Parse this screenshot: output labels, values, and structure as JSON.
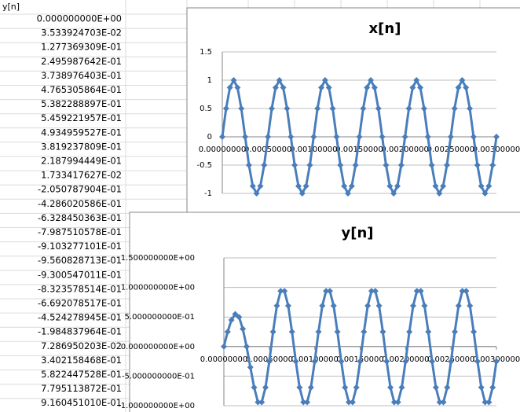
{
  "sheet": {
    "header": "y[n]",
    "cells": [
      "0.000000000E+00",
      "3.533924703E-02",
      "1.277369309E-01",
      "2.495987642E-01",
      "3.738976403E-01",
      "4.765305864E-01",
      "5.382288897E-01",
      "5.459221957E-01",
      "4.934959527E-01",
      "3.819237809E-01",
      "2.187994449E-01",
      "1.733417627E-02",
      "-2.050787904E-01",
      "-4.286020586E-01",
      "-6.328450363E-01",
      "-7.987510578E-01",
      "-9.103277101E-01",
      "-9.560828713E-01",
      "-9.300547011E-01",
      "-8.323578514E-01",
      "-6.692078517E-01",
      "-4.524278945E-01",
      "-1.984837964E-01",
      "7.286950203E-02",
      "3.402158468E-01",
      "5.822447528E-01",
      "7.795113872E-01",
      "9.160451010E-01"
    ]
  },
  "chart_data": [
    {
      "type": "line",
      "title": "x[n]",
      "color": "#4a7ebb",
      "grid": true,
      "categories": [
        "0.00000000",
        null,
        null,
        null,
        null,
        null,
        null,
        null,
        null,
        null,
        null,
        null,
        "0.00050000",
        null,
        null,
        null,
        null,
        null,
        null,
        null,
        null,
        null,
        null,
        null,
        "0.00100000",
        null,
        null,
        null,
        null,
        null,
        null,
        null,
        null,
        null,
        null,
        null,
        "0.00150000",
        null,
        null,
        null,
        null,
        null,
        null,
        null,
        null,
        null,
        null,
        null,
        "0.00200000",
        null,
        null,
        null,
        null,
        null,
        null,
        null,
        null,
        null,
        null,
        null,
        "0.00250000",
        null,
        null,
        null,
        null,
        null,
        null,
        null,
        null,
        null,
        null,
        null,
        "0.00300000"
      ],
      "values": [
        0,
        0.5,
        0.87,
        1,
        0.87,
        0.5,
        0,
        -0.5,
        -0.87,
        -1,
        -0.87,
        -0.5,
        0,
        0.5,
        0.87,
        1,
        0.87,
        0.5,
        0,
        -0.5,
        -0.87,
        -1,
        -0.87,
        -0.5,
        0,
        0.5,
        0.87,
        1,
        0.87,
        0.5,
        0,
        -0.5,
        -0.87,
        -1,
        -0.87,
        -0.5,
        0,
        0.5,
        0.87,
        1,
        0.87,
        0.5,
        0,
        -0.5,
        -0.87,
        -1,
        -0.87,
        -0.5,
        0,
        0.5,
        0.87,
        1,
        0.87,
        0.5,
        0,
        -0.5,
        -0.87,
        -1,
        -0.87,
        -0.5,
        0,
        0.5,
        0.87,
        1,
        0.87,
        0.5,
        0,
        -0.5,
        -0.87,
        -1,
        -0.87,
        -0.5,
        0
      ],
      "ylim": [
        -1,
        1.5
      ],
      "yticks": [
        1.5,
        1,
        0.5,
        0,
        -0.5,
        -1
      ]
    },
    {
      "type": "line",
      "title": "y[n]",
      "color": "#4a7ebb",
      "grid": true,
      "categories": [
        "0.00000000",
        null,
        null,
        null,
        null,
        null,
        null,
        null,
        null,
        null,
        null,
        null,
        "0.00050000",
        null,
        null,
        null,
        null,
        null,
        null,
        null,
        null,
        null,
        null,
        null,
        "0.00100000",
        null,
        null,
        null,
        null,
        null,
        null,
        null,
        null,
        null,
        null,
        null,
        "0.00150000",
        null,
        null,
        null,
        null,
        null,
        null,
        null,
        null,
        null,
        null,
        null,
        "0.00200000",
        null,
        null,
        null,
        null,
        null,
        null,
        null,
        null,
        null,
        null,
        null,
        "0.00250000",
        null,
        null,
        null,
        null,
        null,
        null,
        null,
        null,
        null,
        null,
        null,
        "0.00300000"
      ],
      "values": [
        0,
        0.25,
        0.45,
        0.55,
        0.5,
        0.3,
        0,
        -0.35,
        -0.69,
        -0.94,
        -0.94,
        -0.69,
        -0.25,
        0.25,
        0.69,
        0.94,
        0.94,
        0.69,
        0.25,
        -0.25,
        -0.69,
        -0.94,
        -0.94,
        -0.69,
        -0.25,
        0.25,
        0.69,
        0.94,
        0.94,
        0.69,
        0.25,
        -0.25,
        -0.69,
        -0.94,
        -0.94,
        -0.69,
        -0.25,
        0.25,
        0.69,
        0.94,
        0.94,
        0.69,
        0.25,
        -0.25,
        -0.69,
        -0.94,
        -0.94,
        -0.69,
        -0.25,
        0.25,
        0.69,
        0.94,
        0.94,
        0.69,
        0.25,
        -0.25,
        -0.69,
        -0.94,
        -0.94,
        -0.69,
        -0.25,
        0.25,
        0.69,
        0.94,
        0.94,
        0.69,
        0.25,
        -0.25,
        -0.69,
        -0.94,
        -0.94,
        -0.69,
        -0.25
      ],
      "ylim": [
        -1,
        1.5
      ],
      "yticks": [
        {
          "value": 1.5,
          "label": "1.500000000E+00"
        },
        {
          "value": 1,
          "label": "1.000000000E+00"
        },
        {
          "value": 0.5,
          "label": "5.000000000E-01"
        },
        {
          "value": 0,
          "label": "0.000000000E+00"
        },
        {
          "value": -0.5,
          "label": "-5.000000000E-01"
        },
        {
          "value": -1,
          "label": "-1.000000000E+00"
        }
      ]
    }
  ]
}
